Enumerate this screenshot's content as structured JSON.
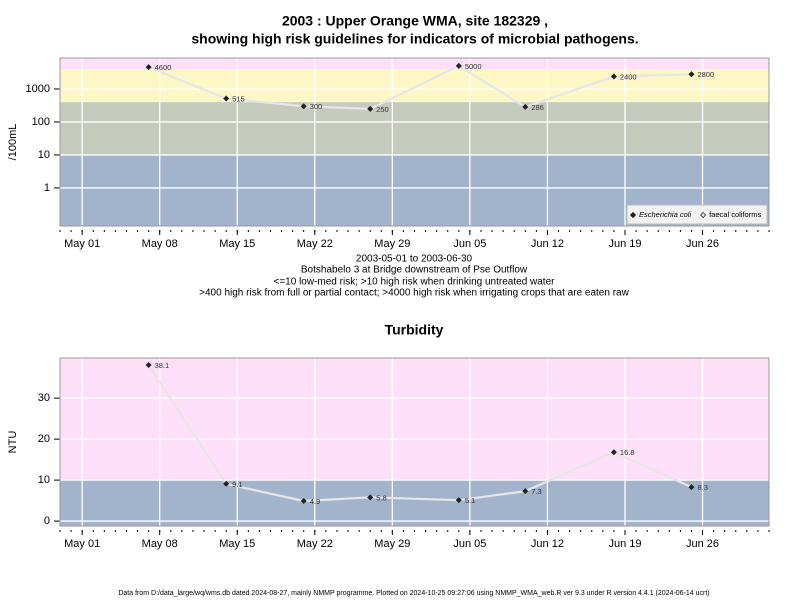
{
  "chart_data": [
    {
      "type": "line",
      "title_lines": [
        "2003 : Upper Orange WMA, site 182329 ,",
        "showing high risk guidelines for indicators of microbial pathogens."
      ],
      "ylabel": "/100mL",
      "notes": [
        "2003-05-01 to 2003-06-30",
        "Botshabelo 3 at Bridge downstream of Pse Outflow",
        "<=10 low-med risk; >10 high risk when drinking untreated water",
        ">400 high risk from full or partial contact; >4000 high risk when irrigating crops that are eaten raw"
      ],
      "x": [
        "May 07",
        "May 14",
        "May 21",
        "May 27",
        "Jun 04",
        "Jun 10",
        "Jun 18",
        "Jun 25"
      ],
      "series": [
        {
          "name": "Escherichia coli",
          "color": "#222222",
          "values": [
            4600,
            515,
            300,
            250,
            5000,
            286,
            2400,
            2800
          ]
        },
        {
          "name": "faecal coliforms",
          "color": "#222222",
          "values": [
            null,
            null,
            null,
            null,
            null,
            null,
            null,
            null
          ]
        }
      ],
      "line_color": "#e6e6e6",
      "log_scale": true,
      "ylim": [
        0.07,
        8700
      ],
      "yticks": [
        1,
        10,
        100,
        1000
      ],
      "xlim": [
        "Apr 29",
        "Jul 02"
      ],
      "xticks": [
        "May 01",
        "May 08",
        "May 15",
        "May 22",
        "May 29",
        "Jun 05",
        "Jun 12",
        "Jun 19",
        "Jun 26"
      ],
      "thresholds": [
        10,
        400,
        4000
      ],
      "band_colors": [
        "#a2b4cc",
        "#c4cbbd",
        "#fdf7c6",
        "#fde0f7"
      ],
      "grid": true,
      "legend": "bottom-right"
    },
    {
      "type": "line",
      "title": "Turbidity",
      "ylabel": "NTU",
      "x": [
        "May 07",
        "May 14",
        "May 21",
        "May 27",
        "Jun 04",
        "Jun 10",
        "Jun 18",
        "Jun 25"
      ],
      "series": [
        {
          "name": "Turbidity",
          "color": "#222222",
          "values": [
            38.1,
            9.1,
            4.9,
            5.8,
            5.1,
            7.3,
            16.8,
            8.3
          ]
        }
      ],
      "line_color": "#e6e6e6",
      "log_scale": false,
      "ylim": [
        -1.2,
        39.8
      ],
      "yticks": [
        0,
        10,
        20,
        30
      ],
      "xlim": [
        "Apr 29",
        "Jul 02"
      ],
      "xticks": [
        "May 01",
        "May 08",
        "May 15",
        "May 22",
        "May 29",
        "Jun 05",
        "Jun 12",
        "Jun 19",
        "Jun 26"
      ],
      "thresholds": [
        10
      ],
      "band_colors": [
        "#a2b4cc",
        "#fde0f7"
      ],
      "grid": true
    }
  ],
  "footer": "Data from D:/data_large/wq/wms.db dated 2024-08-27, mainly NMMP programme. Plotted on 2024-10-25 09:27:06 using NMMP_WMA_web.R ver 9.3 under R version 4.4.1 (2024-06-14 ucrt)"
}
